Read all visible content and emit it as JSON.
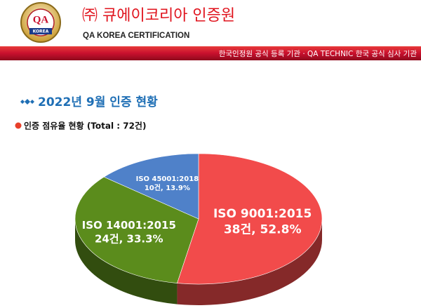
{
  "header": {
    "logo_text": "QA",
    "logo_subtext": "KOREA",
    "company": "㈜ 큐에이코리아 인증원",
    "company_en": "QA KOREA CERTIFICATION",
    "tagline": "한국인정원 공식 등록 기관  ·  QA TECHNIC 한국 공식 심사 기관"
  },
  "chart_data": {
    "type": "pie",
    "title": "2022년 9월 인증 현황",
    "subtitle": "인증 점유율 현황 (Total : 72건)",
    "categories": [
      "ISO 9001:2015",
      "ISO 14001:2015",
      "ISO 45001:2018"
    ],
    "values": [
      38,
      24,
      10
    ],
    "value_labels": [
      "38건, 52.8%",
      "24건, 33.3%",
      "10건, 13.9%"
    ],
    "colors": [
      "#f24b4b",
      "#5b8c1c",
      "#4f81c9"
    ]
  }
}
